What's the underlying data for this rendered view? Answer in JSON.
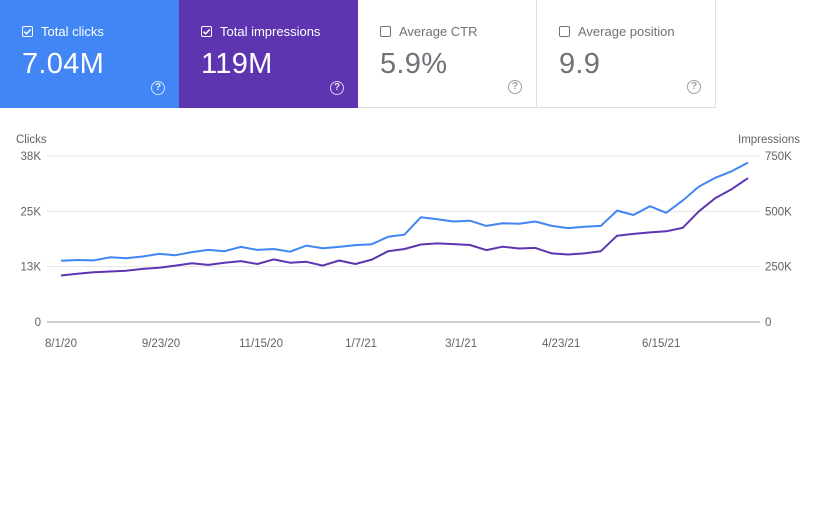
{
  "cards": [
    {
      "label": "Total clicks",
      "value": "7.04M",
      "checked": true,
      "color": "#4285f4"
    },
    {
      "label": "Total impressions",
      "value": "119M",
      "checked": true,
      "color": "#5e35b1"
    },
    {
      "label": "Average CTR",
      "value": "5.9%",
      "checked": false,
      "color": "#ffffff"
    },
    {
      "label": "Average position",
      "value": "9.9",
      "checked": false,
      "color": "#ffffff"
    }
  ],
  "icons": {
    "checkbox": "check-icon",
    "help": "help-circle-icon"
  },
  "chart_data": {
    "type": "line",
    "xlabel": "",
    "left_axis_title": "Clicks",
    "right_axis_title": "Impressions",
    "x_ticks": [
      "8/1/20",
      "9/23/20",
      "11/15/20",
      "1/7/21",
      "3/1/21",
      "4/23/21",
      "6/15/21"
    ],
    "y_left_ticks": [
      "0",
      "13K",
      "25K",
      "38K"
    ],
    "y_right_ticks": [
      "0",
      "250K",
      "500K",
      "750K"
    ],
    "y_left_lim": [
      0,
      38000
    ],
    "y_right_lim": [
      0,
      750000
    ],
    "grid": true,
    "x_start": "2020-08-01",
    "x_end": "2021-07-31",
    "series": [
      {
        "name": "Total clicks",
        "axis": "left",
        "color": "#4285f4",
        "values": [
          14000,
          14200,
          14100,
          14800,
          14600,
          15000,
          15600,
          15300,
          16000,
          16500,
          16200,
          17200,
          16500,
          16700,
          16100,
          17500,
          16900,
          17200,
          17600,
          17800,
          19500,
          20000,
          24000,
          23500,
          23000,
          23200,
          22000,
          22600,
          22500,
          23000,
          22000,
          21500,
          21800,
          22000,
          25500,
          24500,
          26500,
          25000,
          27800,
          31000,
          33000,
          34500,
          36500
        ]
      },
      {
        "name": "Total impressions",
        "axis": "right",
        "color": "#5e35b1",
        "values": [
          210000,
          218000,
          225000,
          228000,
          232000,
          240000,
          245000,
          255000,
          265000,
          258000,
          268000,
          275000,
          262000,
          283000,
          268000,
          272000,
          255000,
          278000,
          262000,
          282000,
          320000,
          330000,
          350000,
          355000,
          352000,
          348000,
          325000,
          340000,
          332000,
          335000,
          310000,
          305000,
          310000,
          320000,
          390000,
          398000,
          405000,
          410000,
          425000,
          500000,
          560000,
          600000,
          650000
        ]
      }
    ]
  }
}
